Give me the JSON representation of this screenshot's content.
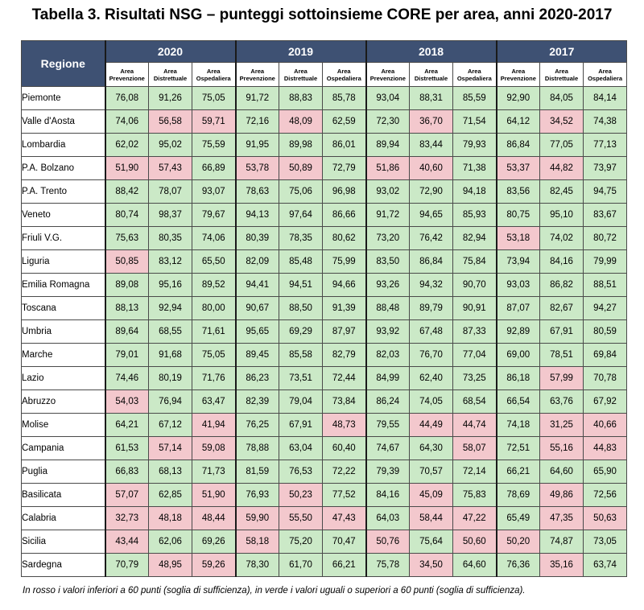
{
  "title": "Tabella 3. Risultati NSG – punteggi sottoinsieme CORE per area, anni 2020-2017",
  "region_header": "Regione",
  "years": [
    "2020",
    "2019",
    "2018",
    "2017"
  ],
  "sub_headers": [
    [
      "Area",
      "Prevenzione"
    ],
    [
      "Area",
      "Distrettuale"
    ],
    [
      "Area",
      "Ospedaliera"
    ]
  ],
  "threshold": 60,
  "colors": {
    "header": "#3e5173",
    "green": "#cbe9c7",
    "red": "#f3c8cd"
  },
  "rows": [
    {
      "name": "Piemonte",
      "values": [
        "76,08",
        "91,26",
        "75,05",
        "91,72",
        "88,83",
        "85,78",
        "93,04",
        "88,31",
        "85,59",
        "92,90",
        "84,05",
        "84,14"
      ]
    },
    {
      "name": "Valle d'Aosta",
      "values": [
        "74,06",
        "56,58",
        "59,71",
        "72,16",
        "48,09",
        "62,59",
        "72,30",
        "36,70",
        "71,54",
        "64,12",
        "34,52",
        "74,38"
      ]
    },
    {
      "name": "Lombardia",
      "values": [
        "62,02",
        "95,02",
        "75,59",
        "91,95",
        "89,98",
        "86,01",
        "89,94",
        "83,44",
        "79,93",
        "86,84",
        "77,05",
        "77,13"
      ]
    },
    {
      "name": "P.A. Bolzano",
      "values": [
        "51,90",
        "57,43",
        "66,89",
        "53,78",
        "50,89",
        "72,79",
        "51,86",
        "40,60",
        "71,38",
        "53,37",
        "44,82",
        "73,97"
      ]
    },
    {
      "name": "P.A.  Trento",
      "values": [
        "88,42",
        "78,07",
        "93,07",
        "78,63",
        "75,06",
        "96,98",
        "93,02",
        "72,90",
        "94,18",
        "83,56",
        "82,45",
        "94,75"
      ]
    },
    {
      "name": "Veneto",
      "values": [
        "80,74",
        "98,37",
        "79,67",
        "94,13",
        "97,64",
        "86,66",
        "91,72",
        "94,65",
        "85,93",
        "80,75",
        "95,10",
        "83,67"
      ]
    },
    {
      "name": "Friuli V.G.",
      "values": [
        "75,63",
        "80,35",
        "74,06",
        "80,39",
        "78,35",
        "80,62",
        "73,20",
        "76,42",
        "82,94",
        "53,18",
        "74,02",
        "80,72"
      ]
    },
    {
      "name": "Liguria",
      "values": [
        "50,85",
        "83,12",
        "65,50",
        "82,09",
        "85,48",
        "75,99",
        "83,50",
        "86,84",
        "75,84",
        "73,94",
        "84,16",
        "79,99"
      ]
    },
    {
      "name": "Emilia Romagna",
      "values": [
        "89,08",
        "95,16",
        "89,52",
        "94,41",
        "94,51",
        "94,66",
        "93,26",
        "94,32",
        "90,70",
        "93,03",
        "86,82",
        "88,51"
      ]
    },
    {
      "name": "Toscana",
      "values": [
        "88,13",
        "92,94",
        "80,00",
        "90,67",
        "88,50",
        "91,39",
        "88,48",
        "89,79",
        "90,91",
        "87,07",
        "82,67",
        "94,27"
      ]
    },
    {
      "name": "Umbria",
      "values": [
        "89,64",
        "68,55",
        "71,61",
        "95,65",
        "69,29",
        "87,97",
        "93,92",
        "67,48",
        "87,33",
        "92,89",
        "67,91",
        "80,59"
      ]
    },
    {
      "name": "Marche",
      "values": [
        "79,01",
        "91,68",
        "75,05",
        "89,45",
        "85,58",
        "82,79",
        "82,03",
        "76,70",
        "77,04",
        "69,00",
        "78,51",
        "69,84"
      ]
    },
    {
      "name": "Lazio",
      "values": [
        "74,46",
        "80,19",
        "71,76",
        "86,23",
        "73,51",
        "72,44",
        "84,99",
        "62,40",
        "73,25",
        "86,18",
        "57,99",
        "70,78"
      ]
    },
    {
      "name": "Abruzzo",
      "values": [
        "54,03",
        "76,94",
        "63,47",
        "82,39",
        "79,04",
        "73,84",
        "86,24",
        "74,05",
        "68,54",
        "66,54",
        "63,76",
        "67,92"
      ]
    },
    {
      "name": "Molise",
      "values": [
        "64,21",
        "67,12",
        "41,94",
        "76,25",
        "67,91",
        "48,73",
        "79,55",
        "44,49",
        "44,74",
        "74,18",
        "31,25",
        "40,66"
      ]
    },
    {
      "name": "Campania",
      "values": [
        "61,53",
        "57,14",
        "59,08",
        "78,88",
        "63,04",
        "60,40",
        "74,67",
        "64,30",
        "58,07",
        "72,51",
        "55,16",
        "44,83"
      ]
    },
    {
      "name": "Puglia",
      "values": [
        "66,83",
        "68,13",
        "71,73",
        "81,59",
        "76,53",
        "72,22",
        "79,39",
        "70,57",
        "72,14",
        "66,21",
        "64,60",
        "65,90"
      ]
    },
    {
      "name": "Basilicata",
      "values": [
        "57,07",
        "62,85",
        "51,90",
        "76,93",
        "50,23",
        "77,52",
        "84,16",
        "45,09",
        "75,83",
        "78,69",
        "49,86",
        "72,56"
      ]
    },
    {
      "name": "Calabria",
      "values": [
        "32,73",
        "48,18",
        "48,44",
        "59,90",
        "55,50",
        "47,43",
        "64,03",
        "58,44",
        "47,22",
        "65,49",
        "47,35",
        "50,63"
      ]
    },
    {
      "name": "Sicilia",
      "values": [
        "43,44",
        "62,06",
        "69,26",
        "58,18",
        "75,20",
        "70,47",
        "50,76",
        "75,64",
        "50,60",
        "50,20",
        "74,87",
        "73,05"
      ]
    },
    {
      "name": "Sardegna",
      "values": [
        "70,79",
        "48,95",
        "59,26",
        "78,30",
        "61,70",
        "66,21",
        "75,78",
        "34,50",
        "64,60",
        "76,36",
        "35,16",
        "63,74"
      ]
    }
  ],
  "footnote": "In rosso i valori inferiori a 60 punti (soglia di sufficienza), in verde i valori uguali o superiori a 60 punti (soglia di sufficienza)."
}
